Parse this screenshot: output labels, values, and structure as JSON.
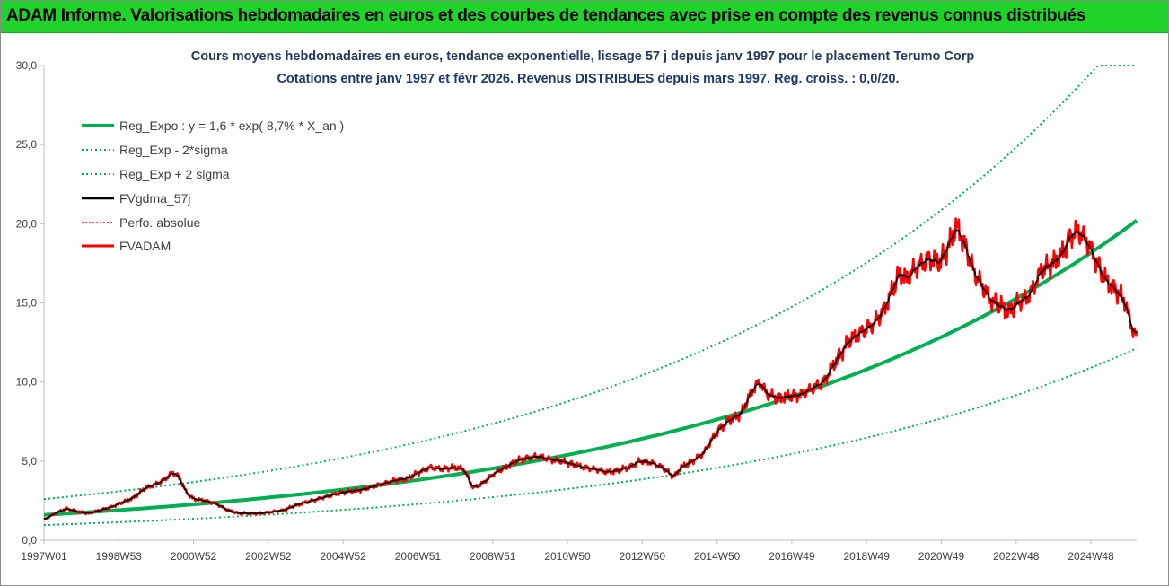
{
  "banner": "ADAM Informe. Valorisations hebdomadaires en euros et des courbes de tendances avec prise en compte des revenus connus distribués",
  "chart_data": {
    "type": "line",
    "title": "Cours moyens hebdomadaires en euros, tendance exponentielle, lissage 57 j depuis janv 1997 pour le placement Terumo Corp",
    "subtitle": "Cotations entre janv 1997 et févr 2026. Revenus DISTRIBUES depuis mars 1997. Reg. croiss. : 0,0/20.",
    "ylim": [
      0,
      30
    ],
    "y_ticks": [
      "0,0",
      "5,0",
      "10,0",
      "15,0",
      "20,0",
      "25,0",
      "30,0"
    ],
    "x_ticks": [
      "1997W01",
      "1998W53",
      "2000W52",
      "2002W52",
      "2004W52",
      "2006W51",
      "2008W51",
      "2010W50",
      "2012W50",
      "2014W50",
      "2016W49",
      "2018W49",
      "2020W49",
      "2022W48",
      "2024W48"
    ],
    "x_range": [
      1997.0,
      2026.15
    ],
    "legend_position": "top-left",
    "grid": false,
    "series": [
      {
        "name": "Reg_Expo : y = 1,6 * exp( 8,7% *  X_an )",
        "style": "solid-thick",
        "color": "#00b050",
        "formula": "1.6*exp(0.087*t)"
      },
      {
        "name": "Reg_Exp - 2*sigma",
        "style": "dotted",
        "color": "#00b050",
        "formula": "0.96*exp(0.087*t)"
      },
      {
        "name": "Reg_Exp + 2 sigma",
        "style": "dotted",
        "color": "#00b050",
        "formula": "2.6*exp(0.087*t), capped at 30"
      },
      {
        "name": "FVgdma_57j",
        "style": "solid",
        "color": "#000000"
      },
      {
        "name": "Perfo. absolue",
        "style": "dotted",
        "color": "#ff0000"
      },
      {
        "name": "FVADAM",
        "style": "solid-thick",
        "color": "#ff0000"
      }
    ],
    "price_points": [
      [
        1997.0,
        1.3
      ],
      [
        1997.3,
        1.7
      ],
      [
        1997.6,
        2.0
      ],
      [
        1997.9,
        1.8
      ],
      [
        1998.2,
        1.7
      ],
      [
        1998.5,
        1.9
      ],
      [
        1998.8,
        2.1
      ],
      [
        1999.1,
        2.4
      ],
      [
        1999.4,
        2.7
      ],
      [
        1999.7,
        3.3
      ],
      [
        1999.95,
        3.5
      ],
      [
        2000.2,
        3.8
      ],
      [
        2000.45,
        4.3
      ],
      [
        2000.6,
        4.0
      ],
      [
        2000.8,
        3.0
      ],
      [
        2001.0,
        2.6
      ],
      [
        2001.3,
        2.5
      ],
      [
        2001.6,
        2.3
      ],
      [
        2001.9,
        1.9
      ],
      [
        2002.2,
        1.7
      ],
      [
        2002.5,
        1.7
      ],
      [
        2002.8,
        1.7
      ],
      [
        2003.1,
        1.8
      ],
      [
        2003.4,
        1.9
      ],
      [
        2003.7,
        2.2
      ],
      [
        2004.0,
        2.4
      ],
      [
        2004.3,
        2.6
      ],
      [
        2004.6,
        2.8
      ],
      [
        2004.9,
        3.0
      ],
      [
        2005.2,
        3.1
      ],
      [
        2005.5,
        3.2
      ],
      [
        2005.8,
        3.4
      ],
      [
        2006.1,
        3.6
      ],
      [
        2006.4,
        3.8
      ],
      [
        2006.7,
        3.9
      ],
      [
        2007.0,
        4.3
      ],
      [
        2007.3,
        4.6
      ],
      [
        2007.6,
        4.5
      ],
      [
        2007.9,
        4.6
      ],
      [
        2008.2,
        4.5
      ],
      [
        2008.45,
        3.3
      ],
      [
        2008.7,
        3.6
      ],
      [
        2009.0,
        4.2
      ],
      [
        2009.3,
        4.6
      ],
      [
        2009.6,
        5.0
      ],
      [
        2009.9,
        5.2
      ],
      [
        2010.2,
        5.3
      ],
      [
        2010.5,
        5.1
      ],
      [
        2010.8,
        5.0
      ],
      [
        2011.1,
        4.8
      ],
      [
        2011.4,
        4.6
      ],
      [
        2011.7,
        4.5
      ],
      [
        2012.0,
        4.3
      ],
      [
        2012.3,
        4.4
      ],
      [
        2012.6,
        4.6
      ],
      [
        2012.9,
        5.0
      ],
      [
        2013.2,
        4.9
      ],
      [
        2013.5,
        4.6
      ],
      [
        2013.8,
        4.0
      ],
      [
        2014.0,
        4.6
      ],
      [
        2014.3,
        5.0
      ],
      [
        2014.6,
        5.5
      ],
      [
        2014.8,
        6.3
      ],
      [
        2015.0,
        7.0
      ],
      [
        2015.3,
        7.6
      ],
      [
        2015.6,
        8.0
      ],
      [
        2015.9,
        9.5
      ],
      [
        2016.1,
        10.0
      ],
      [
        2016.3,
        9.2
      ],
      [
        2016.6,
        9.0
      ],
      [
        2016.9,
        9.1
      ],
      [
        2017.2,
        9.2
      ],
      [
        2017.5,
        9.6
      ],
      [
        2017.8,
        10.0
      ],
      [
        2018.0,
        10.8
      ],
      [
        2018.2,
        11.6
      ],
      [
        2018.45,
        12.5
      ],
      [
        2018.7,
        13.0
      ],
      [
        2018.9,
        13.3
      ],
      [
        2019.1,
        13.6
      ],
      [
        2019.35,
        14.3
      ],
      [
        2019.6,
        15.6
      ],
      [
        2019.85,
        17.0
      ],
      [
        2020.0,
        16.5
      ],
      [
        2020.3,
        17.3
      ],
      [
        2020.6,
        17.8
      ],
      [
        2020.9,
        17.5
      ],
      [
        2021.1,
        18.5
      ],
      [
        2021.35,
        19.8
      ],
      [
        2021.6,
        18.5
      ],
      [
        2021.8,
        17.0
      ],
      [
        2022.0,
        16.2
      ],
      [
        2022.25,
        15.2
      ],
      [
        2022.5,
        14.8
      ],
      [
        2022.75,
        14.5
      ],
      [
        2023.0,
        15.0
      ],
      [
        2023.3,
        15.5
      ],
      [
        2023.6,
        17.0
      ],
      [
        2023.9,
        17.5
      ],
      [
        2024.15,
        18.0
      ],
      [
        2024.4,
        19.3
      ],
      [
        2024.6,
        19.5
      ],
      [
        2024.8,
        19.0
      ],
      [
        2025.0,
        18.0
      ],
      [
        2025.3,
        16.5
      ],
      [
        2025.6,
        15.8
      ],
      [
        2025.85,
        15.0
      ],
      [
        2026.0,
        13.6
      ],
      [
        2026.15,
        12.8
      ]
    ]
  }
}
